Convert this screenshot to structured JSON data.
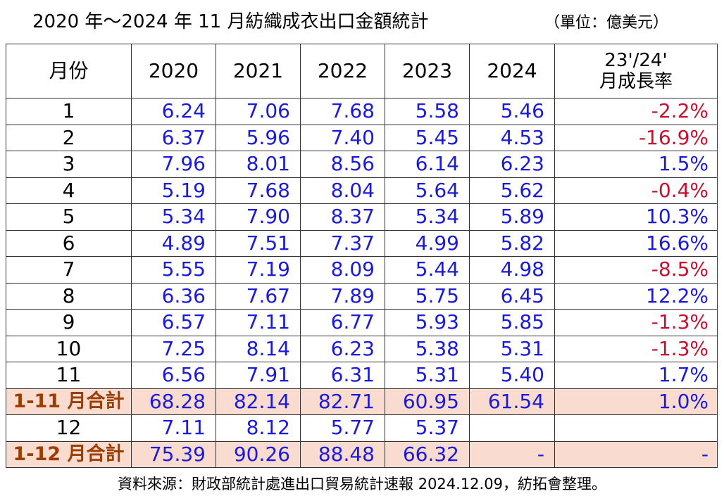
{
  "title": "2020 年～2024 年 11 月紡織成衣出口金額統計",
  "unit": "（單位：億美元）",
  "headers": {
    "month": "月份",
    "years": [
      "2020",
      "2021",
      "2022",
      "2023",
      "2024"
    ],
    "growth_line1": "23'/24'",
    "growth_line2": "月成長率"
  },
  "rows": [
    {
      "month": "1",
      "v": [
        "6.24",
        "7.06",
        "7.68",
        "5.58",
        "5.46"
      ],
      "growth": "-2.2%",
      "neg": true,
      "sum": false
    },
    {
      "month": "2",
      "v": [
        "6.37",
        "5.96",
        "7.40",
        "5.45",
        "4.53"
      ],
      "growth": "-16.9%",
      "neg": true,
      "sum": false
    },
    {
      "month": "3",
      "v": [
        "7.96",
        "8.01",
        "8.56",
        "6.14",
        "6.23"
      ],
      "growth": "1.5%",
      "neg": false,
      "sum": false
    },
    {
      "month": "4",
      "v": [
        "5.19",
        "7.68",
        "8.04",
        "5.64",
        "5.62"
      ],
      "growth": "-0.4%",
      "neg": true,
      "sum": false
    },
    {
      "month": "5",
      "v": [
        "5.34",
        "7.90",
        "8.37",
        "5.34",
        "5.89"
      ],
      "growth": "10.3%",
      "neg": false,
      "sum": false
    },
    {
      "month": "6",
      "v": [
        "4.89",
        "7.51",
        "7.37",
        "4.99",
        "5.82"
      ],
      "growth": "16.6%",
      "neg": false,
      "sum": false
    },
    {
      "month": "7",
      "v": [
        "5.55",
        "7.19",
        "8.09",
        "5.44",
        "4.98"
      ],
      "growth": "-8.5%",
      "neg": true,
      "sum": false
    },
    {
      "month": "8",
      "v": [
        "6.36",
        "7.67",
        "7.89",
        "5.75",
        "6.45"
      ],
      "growth": "12.2%",
      "neg": false,
      "sum": false
    },
    {
      "month": "9",
      "v": [
        "6.57",
        "7.11",
        "6.77",
        "5.93",
        "5.85"
      ],
      "growth": "-1.3%",
      "neg": true,
      "sum": false
    },
    {
      "month": "10",
      "v": [
        "7.25",
        "8.14",
        "6.23",
        "5.38",
        "5.31"
      ],
      "growth": "-1.3%",
      "neg": true,
      "sum": false
    },
    {
      "month": "11",
      "v": [
        "6.56",
        "7.91",
        "6.31",
        "5.31",
        "5.40"
      ],
      "growth": "1.7%",
      "neg": false,
      "sum": false
    },
    {
      "month": "1-11 月合計",
      "v": [
        "68.28",
        "82.14",
        "82.71",
        "60.95",
        "61.54"
      ],
      "growth": "1.0%",
      "neg": false,
      "sum": true
    },
    {
      "month": "12",
      "v": [
        "7.11",
        "8.12",
        "5.77",
        "5.37",
        ""
      ],
      "growth": "",
      "neg": false,
      "sum": false
    },
    {
      "month": "1-12 月合計",
      "v": [
        "75.39",
        "90.26",
        "88.48",
        "66.32",
        "-"
      ],
      "growth": "-",
      "neg": false,
      "sum": true
    }
  ],
  "source": "資料來源：財政部統計處進出口貿易統計速報 2024.12.09，紡拓會整理。",
  "colors": {
    "value_text": "#1a1adc",
    "negative_growth": "#c8102e",
    "total_row_bg": "#f9dbd0",
    "total_label": "#9a3f00"
  }
}
